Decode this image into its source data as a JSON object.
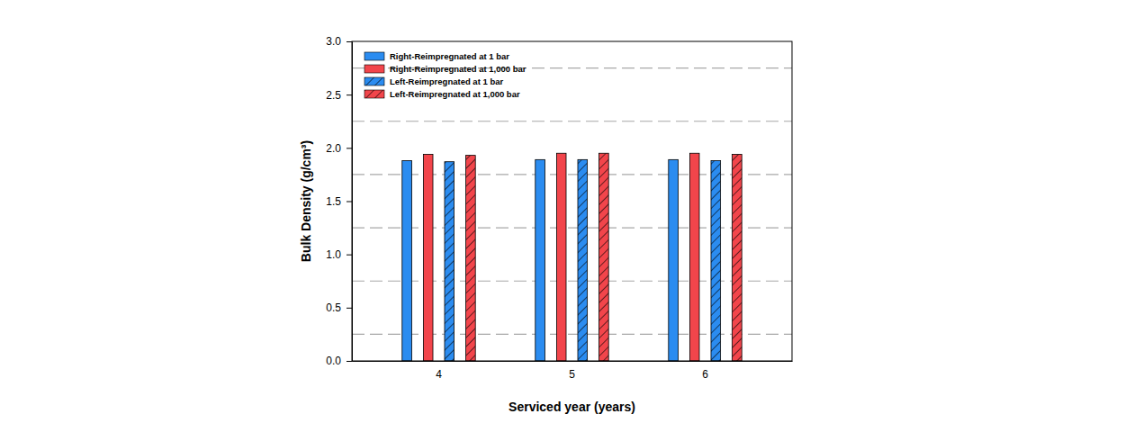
{
  "chart_data": {
    "type": "bar",
    "x_label": "Serviced year (years)",
    "y_label": "Bulk Density (g/cm³)",
    "categories": [
      "4",
      "5",
      "6"
    ],
    "series": [
      {
        "name": "Right-Reimpregnated at 1 bar",
        "color": "#2b8cf0",
        "values": [
          1.88,
          1.89,
          1.89
        ]
      },
      {
        "name": "Right-Reimpregnated at 1,000 bar",
        "color": "#f2454b",
        "values": [
          1.94,
          1.95,
          1.95
        ]
      },
      {
        "name": "Left-Reimpregnated at 1 bar",
        "color": "#2b8cf0",
        "values": [
          1.87,
          1.89,
          1.88
        ]
      },
      {
        "name": "Left-Reimpregnated at 1,000 bar",
        "color": "#f2454b",
        "values": [
          1.93,
          1.95,
          1.94
        ]
      }
    ],
    "ylim": [
      0,
      3
    ],
    "yticks": [
      {
        "value": 0,
        "label": "0.0"
      },
      0.5,
      {
        "value": 1,
        "label": "1.0"
      },
      1.5,
      {
        "value": 2,
        "label": "2.0"
      },
      2.5,
      {
        "value": 3,
        "label": "3.0"
      }
    ],
    "grid": true,
    "legend": "upper left"
  }
}
